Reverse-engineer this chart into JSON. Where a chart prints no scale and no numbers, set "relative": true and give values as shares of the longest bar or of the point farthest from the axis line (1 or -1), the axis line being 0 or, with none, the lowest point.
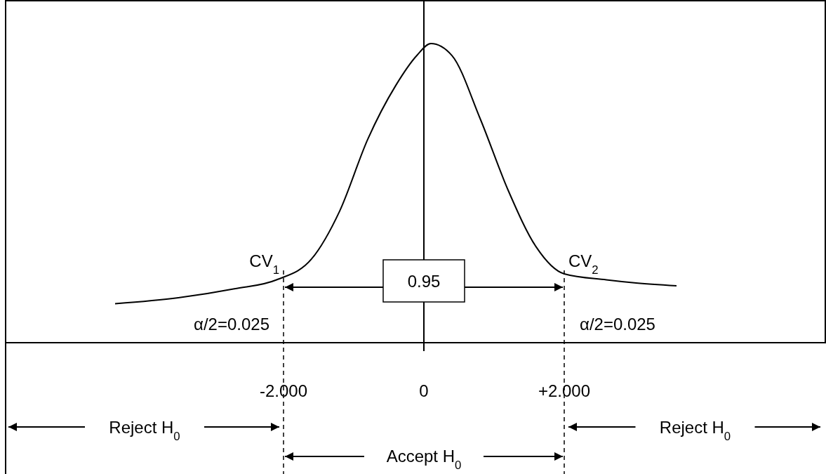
{
  "chart_data": {
    "type": "line",
    "relative": true,
    "x": [
      -4.4,
      -3.5,
      -2.7,
      -2.1,
      -1.6,
      -1.2,
      -0.8,
      -0.4,
      -0.1,
      0.1,
      0.4,
      0.8,
      1.2,
      1.6,
      2.0,
      2.6,
      3.0,
      3.6
    ],
    "series": [
      {
        "color": "#000000",
        "values": [
          0.13,
          0.15,
          0.18,
          0.21,
          0.28,
          0.44,
          0.68,
          0.86,
          0.96,
          1,
          0.96,
          0.75,
          0.51,
          0.32,
          0.23,
          0.21,
          0.2,
          0.19
        ]
      }
    ],
    "xlim": [
      -5.96,
      5.73
    ],
    "xticks": [
      {
        "value": -2,
        "label": "-2.000"
      },
      0,
      {
        "value": 2,
        "label": "+2.000"
      }
    ],
    "ref_lines": [
      {
        "axis": "x",
        "value": -2,
        "label": "CV$_{1}$",
        "line_style": "dashed"
      },
      {
        "axis": "x",
        "value": 2,
        "label": "CV$_{2}$",
        "line_style": "dashed"
      }
    ],
    "annotations": [
      "0.95",
      "α/2=0.025",
      "α/2=0.025",
      "Reject H$_{0}$",
      "Accept H$_{0}$",
      "Reject H$_{0}$"
    ],
    "marker": "none",
    "line_style": "solid"
  }
}
